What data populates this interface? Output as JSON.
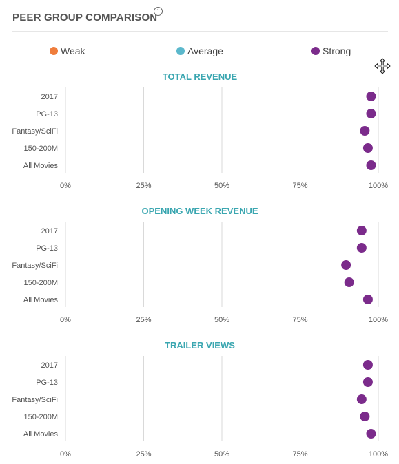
{
  "header": {
    "title": "PEER GROUP COMPARISON",
    "info_symbol": "i"
  },
  "legend": [
    {
      "label": "Weak",
      "color": "#ef7d3c"
    },
    {
      "label": "Average",
      "color": "#5bb8cc"
    },
    {
      "label": "Strong",
      "color": "#7b2b8b"
    }
  ],
  "icons": {
    "info": "info-icon",
    "move": "move-cursor-icon"
  },
  "colors": {
    "section_title": "#3aa6b0",
    "grid": "#d9d9d9",
    "label": "#555555"
  },
  "chart_data": [
    {
      "type": "scatter",
      "title": "TOTAL REVENUE",
      "categories": [
        "2017",
        "PG-13",
        "Fantasy/SciFi",
        "150-200M",
        "All Movies"
      ],
      "values": [
        99,
        99,
        97,
        98,
        99
      ],
      "point_color": "#7b2b8b",
      "xlim": [
        0,
        100
      ],
      "x_ticks": [
        "0%",
        "25%",
        "50%",
        "75%",
        "100%"
      ],
      "grid": true
    },
    {
      "type": "scatter",
      "title": "OPENING WEEK REVENUE",
      "categories": [
        "2017",
        "PG-13",
        "Fantasy/SciFi",
        "150-200M",
        "All Movies"
      ],
      "values": [
        96,
        96,
        91,
        92,
        98
      ],
      "point_color": "#7b2b8b",
      "xlim": [
        0,
        100
      ],
      "x_ticks": [
        "0%",
        "25%",
        "50%",
        "75%",
        "100%"
      ],
      "grid": true
    },
    {
      "type": "scatter",
      "title": "TRAILER VIEWS",
      "categories": [
        "2017",
        "PG-13",
        "Fantasy/SciFi",
        "150-200M",
        "All Movies"
      ],
      "values": [
        98,
        98,
        96,
        97,
        99
      ],
      "point_color": "#7b2b8b",
      "xlim": [
        0,
        100
      ],
      "x_ticks": [
        "0%",
        "25%",
        "50%",
        "75%",
        "100%"
      ],
      "grid": true
    }
  ]
}
